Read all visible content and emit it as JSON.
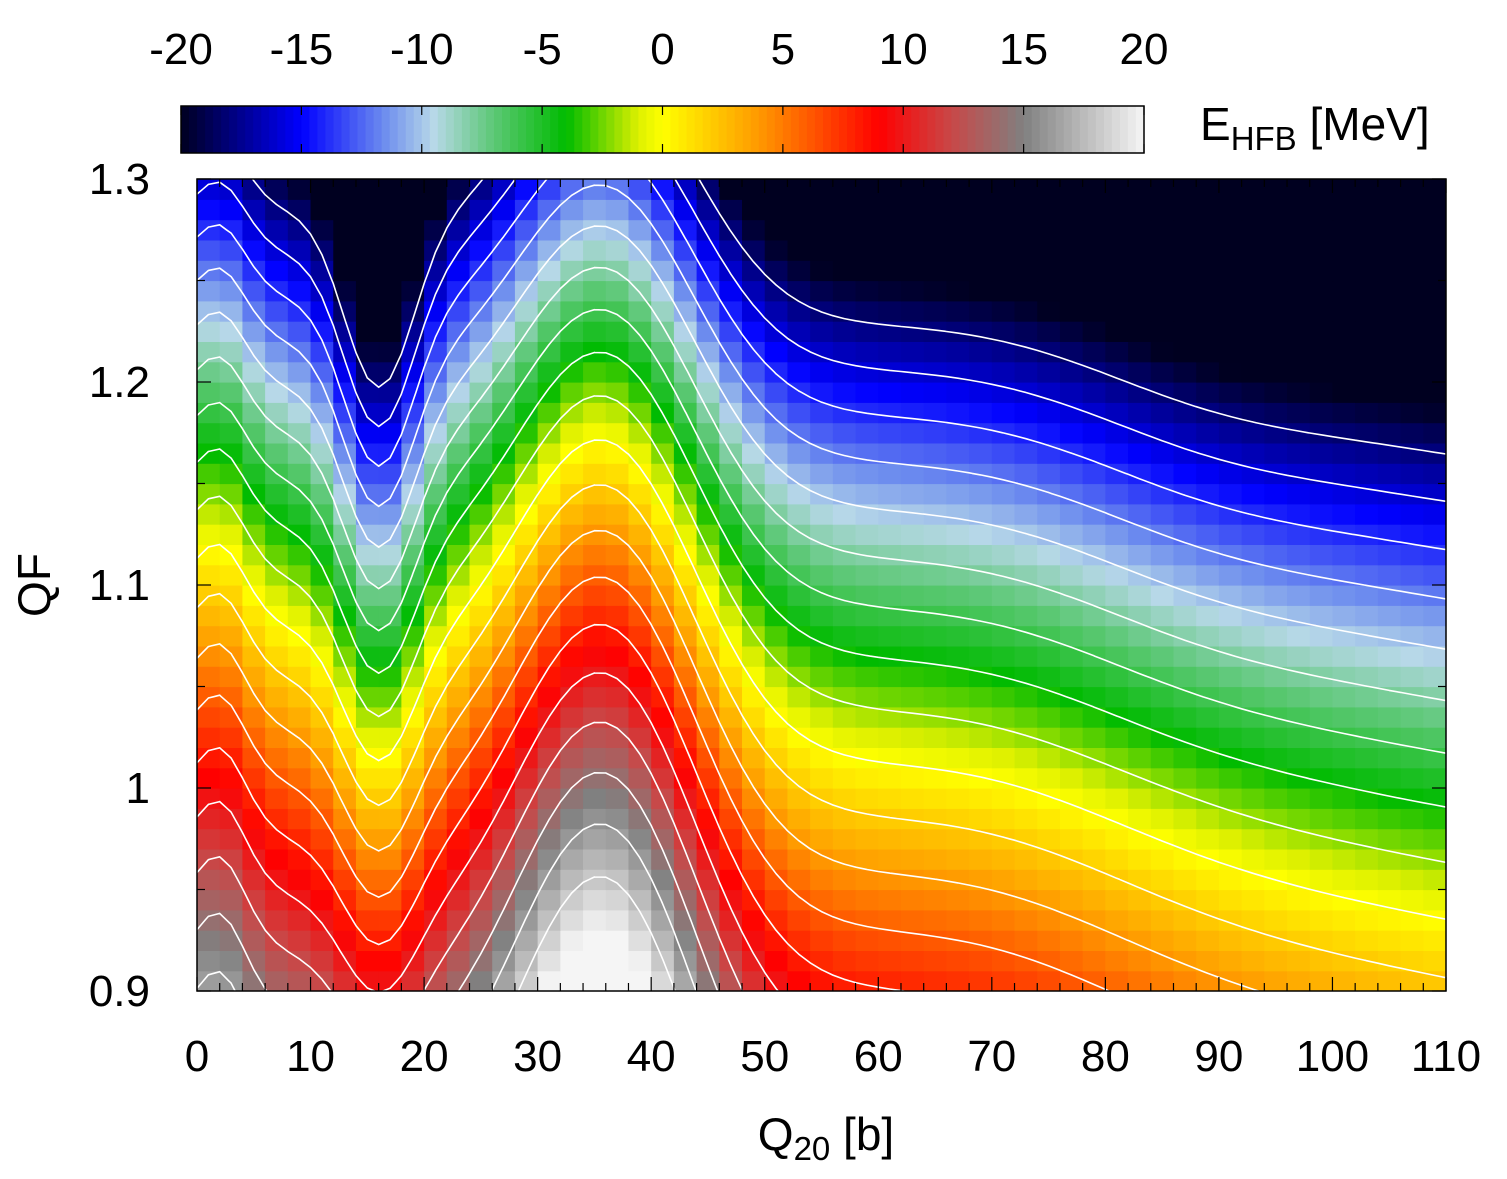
{
  "chart_data": {
    "type": "heatmap",
    "title": "",
    "xlabel": {
      "main": "Q",
      "sub": "20",
      "unit": " [b]"
    },
    "ylabel": "QF",
    "colorbar_label": {
      "main": "E",
      "sub": "HFB",
      "unit": " [MeV]"
    },
    "xlim": [
      0,
      110
    ],
    "ylim": [
      0.9,
      1.3
    ],
    "zlim": [
      -20,
      20
    ],
    "x_ticks": [
      0,
      10,
      20,
      30,
      40,
      50,
      60,
      70,
      80,
      90,
      100,
      110
    ],
    "x_tick_labels": [
      "0",
      "10",
      "20",
      "30",
      "40",
      "50",
      "60",
      "70",
      "80",
      "90",
      "100",
      "110"
    ],
    "y_ticks": [
      0.9,
      1.0,
      1.1,
      1.2,
      1.3
    ],
    "y_tick_labels": [
      "0.9",
      "1",
      "1.1",
      "1.2",
      "1.3"
    ],
    "colorbar_ticks": [
      -20,
      -15,
      -10,
      -5,
      0,
      5,
      10,
      15,
      20
    ],
    "colorbar_tick_labels": [
      "-20",
      "-15",
      "-10",
      "-5",
      "0",
      "5",
      "10",
      "15",
      "20"
    ],
    "colormap": [
      {
        "value": -20,
        "color": "#000020"
      },
      {
        "value": -15,
        "color": "#0000ff"
      },
      {
        "value": -11.5,
        "color": "#6f8fee"
      },
      {
        "value": -9.5,
        "color": "#b7d8e8"
      },
      {
        "value": -7,
        "color": "#5cc875"
      },
      {
        "value": -4,
        "color": "#00bb00"
      },
      {
        "value": -1,
        "color": "#ddf000"
      },
      {
        "value": 0,
        "color": "#ffff00"
      },
      {
        "value": 4,
        "color": "#ff9900"
      },
      {
        "value": 9,
        "color": "#ff0000"
      },
      {
        "value": 12,
        "color": "#c84848"
      },
      {
        "value": 15,
        "color": "#808080"
      },
      {
        "value": 20,
        "color": "#f5f5f5"
      }
    ],
    "contour_levels": [
      -18,
      -16,
      -14,
      -12,
      -10,
      -8,
      -6,
      -4,
      -2,
      0,
      2,
      4,
      6,
      8,
      10,
      12,
      14,
      16,
      18
    ],
    "contour_color": "#ffffff",
    "grid": false
  }
}
